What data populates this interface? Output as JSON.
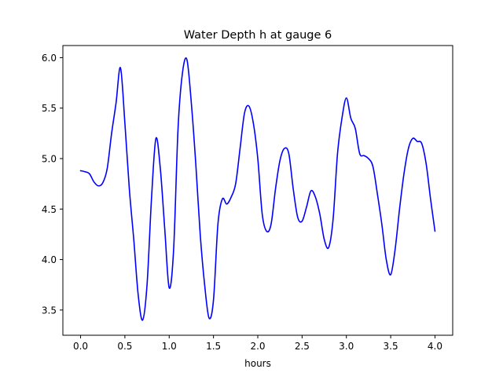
{
  "chart_data": {
    "type": "line",
    "title": "Water Depth h at gauge 6",
    "xlabel": "hours",
    "ylabel": "",
    "xlim": [
      -0.2,
      4.2
    ],
    "ylim": [
      3.25,
      6.12
    ],
    "x_ticks": [
      0.0,
      0.5,
      1.0,
      1.5,
      2.0,
      2.5,
      3.0,
      3.5,
      4.0
    ],
    "x_tick_labels": [
      "0.0",
      "0.5",
      "1.0",
      "1.5",
      "2.0",
      "2.5",
      "3.0",
      "3.5",
      "4.0"
    ],
    "y_ticks": [
      3.5,
      4.0,
      4.5,
      5.0,
      5.5,
      6.0
    ],
    "y_tick_labels": [
      "3.5",
      "4.0",
      "4.5",
      "5.0",
      "5.5",
      "6.0"
    ],
    "grid": false,
    "legend": false,
    "series": [
      {
        "color": "#0000ff",
        "x": [
          0.0,
          0.05,
          0.1,
          0.15,
          0.2,
          0.25,
          0.3,
          0.35,
          0.4,
          0.45,
          0.5,
          0.55,
          0.6,
          0.65,
          0.7,
          0.75,
          0.8,
          0.85,
          0.9,
          0.95,
          1.0,
          1.05,
          1.1,
          1.15,
          1.2,
          1.25,
          1.3,
          1.35,
          1.4,
          1.45,
          1.5,
          1.55,
          1.6,
          1.65,
          1.7,
          1.75,
          1.8,
          1.85,
          1.9,
          1.95,
          2.0,
          2.05,
          2.1,
          2.15,
          2.2,
          2.25,
          2.3,
          2.35,
          2.4,
          2.45,
          2.5,
          2.55,
          2.6,
          2.65,
          2.7,
          2.75,
          2.8,
          2.85,
          2.9,
          2.95,
          3.0,
          3.05,
          3.1,
          3.15,
          3.2,
          3.25,
          3.3,
          3.35,
          3.4,
          3.45,
          3.5,
          3.55,
          3.6,
          3.65,
          3.7,
          3.75,
          3.8,
          3.85,
          3.9,
          3.95,
          4.0
        ],
        "values": [
          4.88,
          4.87,
          4.85,
          4.77,
          4.73,
          4.76,
          4.9,
          5.25,
          5.55,
          5.9,
          5.35,
          4.7,
          4.2,
          3.65,
          3.4,
          3.75,
          4.6,
          5.2,
          4.9,
          4.3,
          3.72,
          4.1,
          5.3,
          5.85,
          5.98,
          5.55,
          4.95,
          4.25,
          3.75,
          3.42,
          3.6,
          4.35,
          4.6,
          4.55,
          4.62,
          4.75,
          5.1,
          5.45,
          5.52,
          5.35,
          5.0,
          4.45,
          4.28,
          4.35,
          4.7,
          4.98,
          5.1,
          5.05,
          4.7,
          4.42,
          4.38,
          4.52,
          4.68,
          4.62,
          4.45,
          4.2,
          4.12,
          4.4,
          5.05,
          5.4,
          5.6,
          5.4,
          5.3,
          5.05,
          5.03,
          5.0,
          4.92,
          4.65,
          4.35,
          4.0,
          3.85,
          4.1,
          4.5,
          4.85,
          5.1,
          5.2,
          5.17,
          5.15,
          4.95,
          4.6,
          4.28
        ]
      }
    ]
  }
}
